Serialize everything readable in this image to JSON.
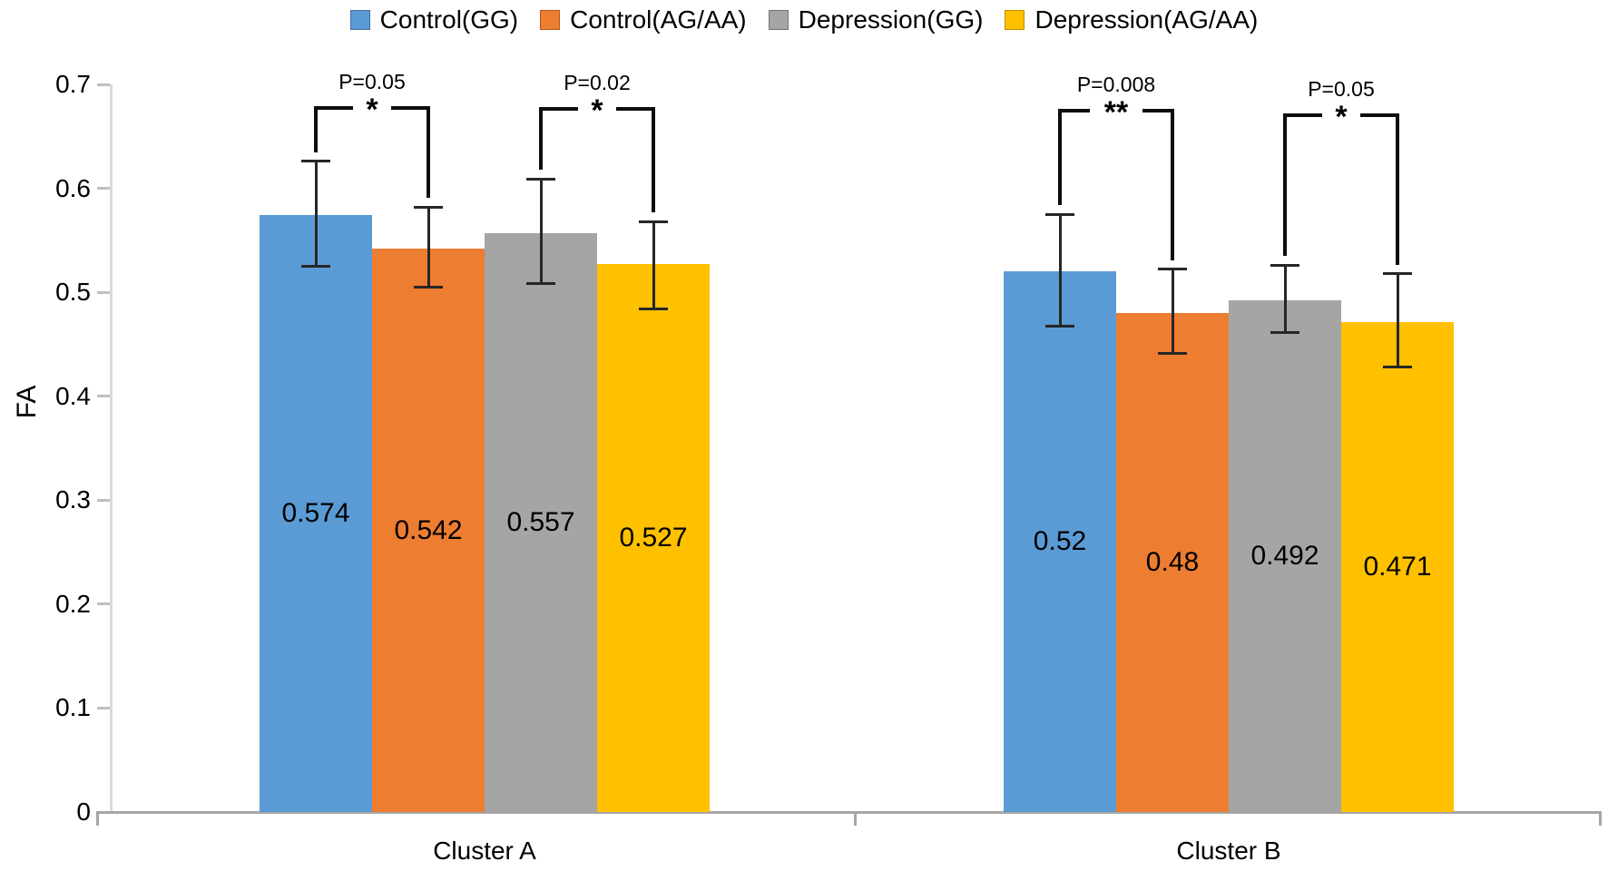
{
  "chart_data": {
    "type": "bar",
    "title": "",
    "xlabel": "",
    "ylabel": "FA",
    "ylim": [
      0,
      0.7
    ],
    "grid": false,
    "legend_position": "top",
    "categories": [
      "Cluster A",
      "Cluster B"
    ],
    "yticks": [
      {
        "v": 0.7,
        "label": "0.7"
      },
      {
        "v": 0.6,
        "label": "0.6"
      },
      {
        "v": 0.5,
        "label": "0.5"
      },
      {
        "v": 0.4,
        "label": "0.4"
      },
      {
        "v": 0.3,
        "label": "0.3"
      },
      {
        "v": 0.2,
        "label": "0.2"
      },
      {
        "v": 0.1,
        "label": "0.1"
      },
      {
        "v": 0,
        "label": "0"
      }
    ],
    "series": [
      {
        "name": "Control(GG)",
        "color": "#5B9BD5",
        "values": [
          0.574,
          0.52
        ],
        "error_plus": [
          0.052,
          0.055
        ],
        "error_minus": [
          0.049,
          0.053
        ]
      },
      {
        "name": "Control(AG/AA)",
        "color": "#ED7D31",
        "values": [
          0.542,
          0.48
        ],
        "error_plus": [
          0.04,
          0.042
        ],
        "error_minus": [
          0.037,
          0.039
        ]
      },
      {
        "name": "Depression(GG)",
        "color": "#A5A5A5",
        "values": [
          0.557,
          0.492
        ],
        "error_plus": [
          0.052,
          0.034
        ],
        "error_minus": [
          0.049,
          0.031
        ]
      },
      {
        "name": "Depression(AG/AA)",
        "color": "#FFC000",
        "values": [
          0.527,
          0.471
        ],
        "error_plus": [
          0.041,
          0.047
        ],
        "error_minus": [
          0.043,
          0.043
        ]
      }
    ],
    "bar_labels": [
      [
        "0.574",
        "0.542",
        "0.557",
        "0.527"
      ],
      [
        "0.52",
        "0.48",
        "0.492",
        "0.471"
      ]
    ],
    "significance": [
      {
        "category": 0,
        "from_series": 0,
        "to_series": 1,
        "p_label": "P=0.05",
        "stars": "*"
      },
      {
        "category": 0,
        "from_series": 2,
        "to_series": 3,
        "p_label": "P=0.02",
        "stars": "*"
      },
      {
        "category": 1,
        "from_series": 0,
        "to_series": 1,
        "p_label": "P=0.008",
        "stars": "**"
      },
      {
        "category": 1,
        "from_series": 2,
        "to_series": 3,
        "p_label": "P=0.05",
        "stars": "*"
      }
    ],
    "axis_colors": {
      "axis_line": "#D9D9D9",
      "tick": "#BFBFBF",
      "baseline": "#A6A6A6",
      "error_bar": "#262626",
      "bracket": "#0d0d0d"
    }
  }
}
